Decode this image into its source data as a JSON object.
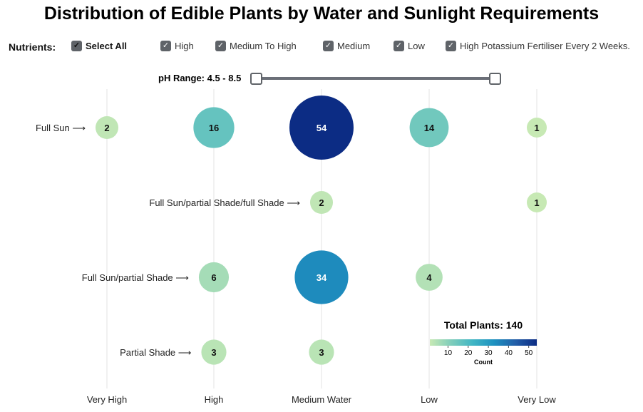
{
  "title": "Distribution of Edible Plants by Water and Sunlight Requirements",
  "filters": {
    "label": "Nutrients:",
    "select_all": "Select All",
    "options": [
      "High",
      "Medium To High",
      "Medium",
      "Low",
      "High Potassium Fertiliser Every 2 Weeks."
    ]
  },
  "ph": {
    "label": "pH Range: 4.5 - 8.5",
    "min": 4.5,
    "max": 8.5
  },
  "chart_data": {
    "type": "bubble",
    "x_categories": [
      "Very High",
      "High",
      "Medium Water",
      "Low",
      "Very Low"
    ],
    "y_categories": [
      "Full Sun ⟶",
      "Full Sun/partial Shade/full Shade ⟶",
      "Full Sun/partial Shade ⟶",
      "Partial Shade ⟶"
    ],
    "points": [
      {
        "x": "Very High",
        "y": 0,
        "value": 2
      },
      {
        "x": "High",
        "y": 0,
        "value": 16
      },
      {
        "x": "Medium Water",
        "y": 0,
        "value": 54
      },
      {
        "x": "Low",
        "y": 0,
        "value": 14
      },
      {
        "x": "Very Low",
        "y": 0,
        "value": 1
      },
      {
        "x": "Medium Water",
        "y": 1,
        "value": 2
      },
      {
        "x": "Very Low",
        "y": 1,
        "value": 1
      },
      {
        "x": "High",
        "y": 2,
        "value": 6
      },
      {
        "x": "Medium Water",
        "y": 2,
        "value": 34
      },
      {
        "x": "Low",
        "y": 2,
        "value": 4
      },
      {
        "x": "High",
        "y": 3,
        "value": 3
      },
      {
        "x": "Medium Water",
        "y": 3,
        "value": 3
      }
    ],
    "total_label": "Total Plants: 140",
    "legend": {
      "title": "Count",
      "ticks": [
        10,
        20,
        30,
        40,
        50
      ],
      "range": [
        1,
        54
      ],
      "colors": [
        "#c7e9b4",
        "#7fcdbb",
        "#41b6c4",
        "#1d91c0",
        "#225ea8",
        "#0c2c84"
      ]
    }
  }
}
